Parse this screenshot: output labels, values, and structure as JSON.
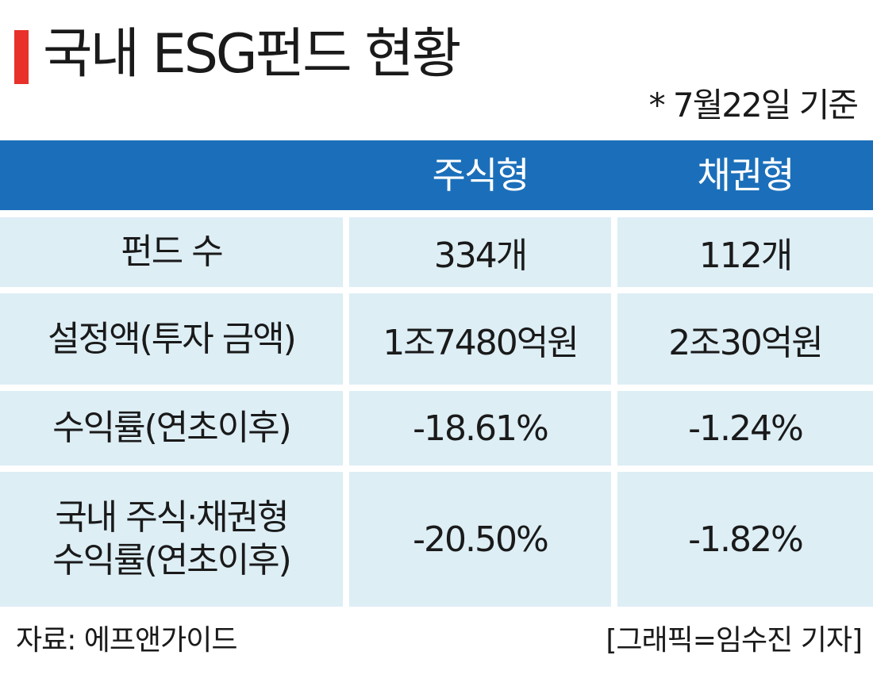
{
  "title": "국내 ESG펀드 현황",
  "note": "* 7월22일 기준",
  "columns": [
    "",
    "주식형",
    "채권형"
  ],
  "rows": [
    {
      "label_lines": [
        "펀드 수"
      ],
      "stock": "334개",
      "bond": "112개"
    },
    {
      "label_lines": [
        "설정액(투자 금액)"
      ],
      "stock": "1조7480억원",
      "bond": "2조30억원"
    },
    {
      "label_lines": [
        "수익률(연초이후)"
      ],
      "stock": "-18.61%",
      "bond": "-1.24%"
    },
    {
      "label_lines": [
        "국내 주식·채권형",
        "수익률(연초이후)"
      ],
      "stock": "-20.50%",
      "bond": "-1.82%"
    }
  ],
  "footer": {
    "source": "자료: 에프앤가이드",
    "credit": "[그래픽=임수진 기자]"
  },
  "colors": {
    "accent_bar": "#e8312a",
    "header_bg": "#1b6fba",
    "cell_bg": "#ddeef5"
  }
}
